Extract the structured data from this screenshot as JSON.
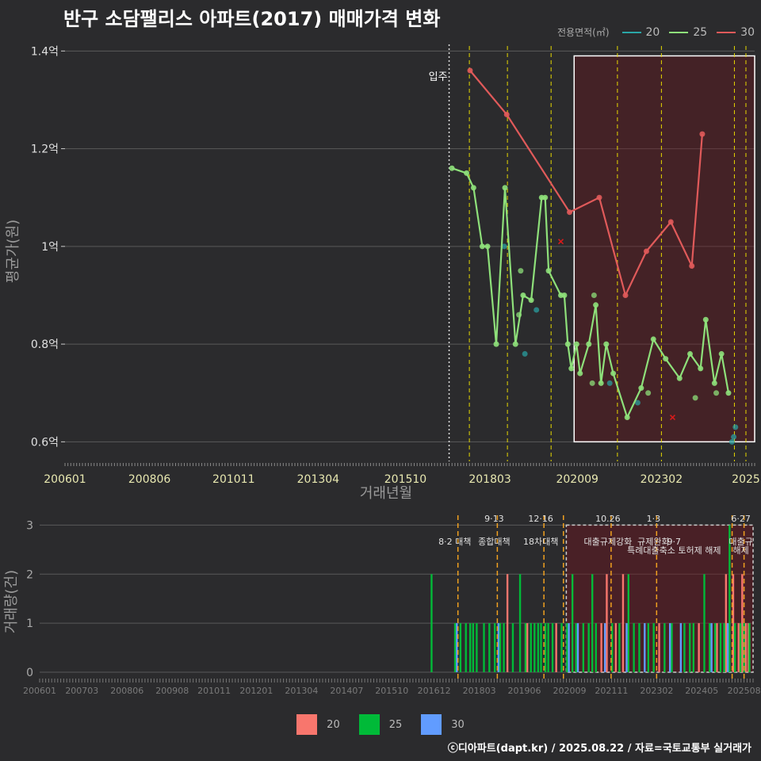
{
  "title": "반구 소담팰리스 아파트(2017) 매매가격 변화",
  "legend_title": "전용면적(㎡)",
  "legend": [
    {
      "label": "20",
      "line_color": "#2aa6a6",
      "fill_color": "#f8766d"
    },
    {
      "label": "25",
      "line_color": "#8ee07a",
      "fill_color": "#00ba38"
    },
    {
      "label": "30",
      "line_color": "#e05a5a",
      "fill_color": "#619cff"
    }
  ],
  "footer": "ⓒ디아파트(dapt.kr) / 2025.08.22 / 자료=국토교통부 실거래가",
  "chart_data": [
    {
      "type": "line",
      "title": "반구 소담팰리스 아파트(2017) 매매가격 변화",
      "xlabel": "거래년월",
      "ylabel": "평균가(원)",
      "x_range": [
        2006.0,
        2025.75
      ],
      "ylim": [
        0.56,
        1.42
      ],
      "yticks": [
        {
          "v": 0.6,
          "label": "0.6억"
        },
        {
          "v": 0.8,
          "label": "0.8억"
        },
        {
          "v": 1.0,
          "label": "1억"
        },
        {
          "v": 1.2,
          "label": "1.2억"
        },
        {
          "v": 1.4,
          "label": "1.4억"
        }
      ],
      "xticks": [
        {
          "t": 2006.0,
          "label": "200601"
        },
        {
          "t": 2008.42,
          "label": "200806"
        },
        {
          "t": 2010.83,
          "label": "201011"
        },
        {
          "t": 2013.25,
          "label": "201304"
        },
        {
          "t": 2015.75,
          "label": "201510"
        },
        {
          "t": 2018.17,
          "label": "201803"
        },
        {
          "t": 2020.67,
          "label": "202009"
        },
        {
          "t": 2023.08,
          "label": "202302"
        },
        {
          "t": 2025.5,
          "label": "2025"
        }
      ],
      "move_in": {
        "t": 2017.0,
        "label": "입주"
      },
      "policy_lines": [
        2017.58,
        2018.67,
        2019.92,
        2021.82,
        2023.08,
        2025.17,
        2025.5
      ],
      "highlight": {
        "t_start": 2020.58,
        "t_end": 2025.75,
        "y_low": 0.6,
        "y_high": 1.39
      },
      "series": [
        {
          "name": "20",
          "color": "#2aa6a6",
          "line": false,
          "points": [
            [
              2018.58,
              1.0
            ],
            [
              2019.17,
              0.78
            ],
            [
              2019.5,
              0.87
            ],
            [
              2021.6,
              0.72
            ],
            [
              2022.4,
              0.68
            ],
            [
              2025.1,
              0.6
            ],
            [
              2025.15,
              0.61
            ],
            [
              2025.2,
              0.63
            ]
          ]
        },
        {
          "name": "25",
          "color": "#8ee07a",
          "line": true,
          "points": [
            [
              2017.08,
              1.16
            ],
            [
              2017.5,
              1.15
            ],
            [
              2017.7,
              1.12
            ],
            [
              2017.95,
              1.0
            ],
            [
              2018.1,
              1.0
            ],
            [
              2018.35,
              0.8
            ],
            [
              2018.6,
              1.12
            ],
            [
              2018.9,
              0.8
            ],
            [
              2019.12,
              0.9
            ],
            [
              2019.35,
              0.89
            ],
            [
              2019.65,
              1.1
            ],
            [
              2019.75,
              1.1
            ],
            [
              2019.85,
              0.95
            ],
            [
              2020.2,
              0.9
            ],
            [
              2020.3,
              0.9
            ],
            [
              2020.4,
              0.8
            ],
            [
              2020.5,
              0.75
            ],
            [
              2020.65,
              0.8
            ],
            [
              2020.75,
              0.74
            ],
            [
              2021.0,
              0.8
            ],
            [
              2021.2,
              0.88
            ],
            [
              2021.35,
              0.72
            ],
            [
              2021.5,
              0.8
            ],
            [
              2021.7,
              0.74
            ],
            [
              2022.1,
              0.65
            ],
            [
              2022.5,
              0.71
            ],
            [
              2022.85,
              0.81
            ],
            [
              2023.2,
              0.77
            ],
            [
              2023.6,
              0.73
            ],
            [
              2023.9,
              0.78
            ],
            [
              2024.2,
              0.75
            ],
            [
              2024.35,
              0.85
            ],
            [
              2024.6,
              0.72
            ],
            [
              2024.8,
              0.78
            ],
            [
              2025.0,
              0.7
            ]
          ],
          "extra_points": [
            [
              2019.05,
              0.95
            ],
            [
              2019.0,
              0.86
            ],
            [
              2021.15,
              0.9
            ],
            [
              2021.1,
              0.72
            ],
            [
              2022.7,
              0.7
            ],
            [
              2024.05,
              0.69
            ],
            [
              2024.65,
              0.7
            ]
          ]
        },
        {
          "name": "30",
          "color": "#e05a5a",
          "line": true,
          "points": [
            [
              2017.6,
              1.36
            ],
            [
              2018.65,
              1.27
            ],
            [
              2020.45,
              1.07
            ],
            [
              2021.3,
              1.1
            ],
            [
              2022.05,
              0.9
            ],
            [
              2022.65,
              0.99
            ],
            [
              2023.35,
              1.05
            ],
            [
              2023.95,
              0.96
            ],
            [
              2024.25,
              1.23
            ]
          ],
          "cross_points": [
            [
              2020.2,
              1.01
            ],
            [
              2023.4,
              0.65
            ]
          ]
        }
      ]
    },
    {
      "type": "bar",
      "xlabel": "",
      "ylabel": "거래량(건)",
      "x_range": [
        2006.0,
        2025.75
      ],
      "ylim": [
        0,
        3.2
      ],
      "yticks": [
        0,
        1,
        2,
        3
      ],
      "xticks": [
        {
          "t": 2006.0,
          "label": "200601"
        },
        {
          "t": 2007.17,
          "label": "200703"
        },
        {
          "t": 2008.42,
          "label": "200806"
        },
        {
          "t": 2009.67,
          "label": "200908"
        },
        {
          "t": 2010.83,
          "label": "201011"
        },
        {
          "t": 2012.0,
          "label": "201201"
        },
        {
          "t": 2013.25,
          "label": "201304"
        },
        {
          "t": 2014.5,
          "label": "201407"
        },
        {
          "t": 2015.75,
          "label": "201510"
        },
        {
          "t": 2016.92,
          "label": "201612"
        },
        {
          "t": 2018.17,
          "label": "201803"
        },
        {
          "t": 2019.42,
          "label": "201906"
        },
        {
          "t": 2020.67,
          "label": "202009"
        },
        {
          "t": 2021.83,
          "label": "202111"
        },
        {
          "t": 2023.08,
          "label": "202302"
        },
        {
          "t": 2024.33,
          "label": "202405"
        },
        {
          "t": 2025.5,
          "label": "202508"
        }
      ],
      "policy_lines": [
        2017.58,
        2018.67,
        2019.96,
        2020.5,
        2021.82,
        2023.08,
        2025.17,
        2025.5
      ],
      "policy_labels": [
        {
          "t": 2017.58,
          "row": 1,
          "text": "8·2 대책"
        },
        {
          "t": 2018.67,
          "row": 0,
          "text": "9·13"
        },
        {
          "t": 2018.67,
          "row": 1,
          "text": "종합대책"
        },
        {
          "t": 2019.96,
          "row": 0,
          "text": "12·16"
        },
        {
          "t": 2019.96,
          "row": 1,
          "text": "18차대책"
        },
        {
          "t": 2021.82,
          "row": 0,
          "text": "10.26"
        },
        {
          "t": 2021.82,
          "row": 1,
          "text": "대출규제강화"
        },
        {
          "t": 2023.08,
          "row": 0,
          "text": "1·3"
        },
        {
          "t": 2023.08,
          "row": 1,
          "text": "규제완화"
        },
        {
          "t": 2023.65,
          "row": 1,
          "text": "9·7"
        },
        {
          "t": 2023.65,
          "row": 2,
          "text": "특례대출축소 토허제 해제"
        },
        {
          "t": 2025.5,
          "row": 0,
          "text": "6·27"
        },
        {
          "t": 2025.5,
          "row": 1,
          "text": "대출규"
        },
        {
          "t": 2025.5,
          "row": 2,
          "text": "해제"
        }
      ],
      "highlight": {
        "t_start": 2020.58,
        "t_end": 2025.75,
        "y_high": 3
      },
      "series": [
        {
          "name": "20",
          "color": "#f8766d",
          "bars": [
            [
              2018.95,
              2
            ],
            [
              2019.5,
              1
            ],
            [
              2020.3,
              1
            ],
            [
              2021.55,
              1
            ],
            [
              2021.7,
              2
            ],
            [
              2021.95,
              1
            ],
            [
              2022.15,
              2
            ],
            [
              2023.15,
              1
            ],
            [
              2024.25,
              1
            ],
            [
              2024.75,
              1
            ],
            [
              2025.0,
              2
            ],
            [
              2025.2,
              2
            ],
            [
              2025.35,
              1
            ],
            [
              2025.45,
              2
            ],
            [
              2025.55,
              1
            ],
            [
              2025.62,
              1
            ]
          ]
        },
        {
          "name": "25",
          "color": "#00ba38",
          "bars": [
            [
              2016.85,
              2
            ],
            [
              2017.5,
              1
            ],
            [
              2017.65,
              1
            ],
            [
              2017.8,
              1
            ],
            [
              2017.92,
              1
            ],
            [
              2018.0,
              1
            ],
            [
              2018.1,
              1
            ],
            [
              2018.3,
              1
            ],
            [
              2018.45,
              1
            ],
            [
              2018.6,
              1
            ],
            [
              2018.75,
              1
            ],
            [
              2018.85,
              1
            ],
            [
              2019.1,
              1
            ],
            [
              2019.3,
              2
            ],
            [
              2019.45,
              1
            ],
            [
              2019.6,
              1
            ],
            [
              2019.7,
              1
            ],
            [
              2019.8,
              1
            ],
            [
              2019.88,
              1
            ],
            [
              2020.0,
              1
            ],
            [
              2020.08,
              1
            ],
            [
              2020.2,
              1
            ],
            [
              2020.45,
              1
            ],
            [
              2020.6,
              1
            ],
            [
              2020.75,
              2
            ],
            [
              2020.85,
              1
            ],
            [
              2021.05,
              1
            ],
            [
              2021.2,
              1
            ],
            [
              2021.3,
              2
            ],
            [
              2021.4,
              1
            ],
            [
              2021.85,
              1
            ],
            [
              2022.05,
              1
            ],
            [
              2022.3,
              2
            ],
            [
              2022.45,
              1
            ],
            [
              2022.6,
              1
            ],
            [
              2022.85,
              1
            ],
            [
              2023.0,
              1
            ],
            [
              2023.3,
              1
            ],
            [
              2023.5,
              1
            ],
            [
              2023.85,
              1
            ],
            [
              2024.0,
              1
            ],
            [
              2024.1,
              1
            ],
            [
              2024.4,
              2
            ],
            [
              2024.55,
              1
            ],
            [
              2024.7,
              1
            ],
            [
              2024.85,
              1
            ],
            [
              2024.95,
              1
            ],
            [
              2025.1,
              3
            ],
            [
              2025.25,
              1
            ],
            [
              2025.4,
              1
            ],
            [
              2025.5,
              1
            ],
            [
              2025.65,
              1
            ]
          ]
        },
        {
          "name": "30",
          "color": "#619cff",
          "bars": [
            [
              2017.55,
              1
            ],
            [
              2018.7,
              1
            ],
            [
              2020.65,
              1
            ],
            [
              2020.9,
              1
            ],
            [
              2021.65,
              1
            ],
            [
              2022.25,
              1
            ],
            [
              2022.75,
              1
            ],
            [
              2023.45,
              1
            ],
            [
              2023.75,
              1
            ],
            [
              2024.6,
              1
            ],
            [
              2025.05,
              1
            ]
          ]
        }
      ]
    }
  ]
}
